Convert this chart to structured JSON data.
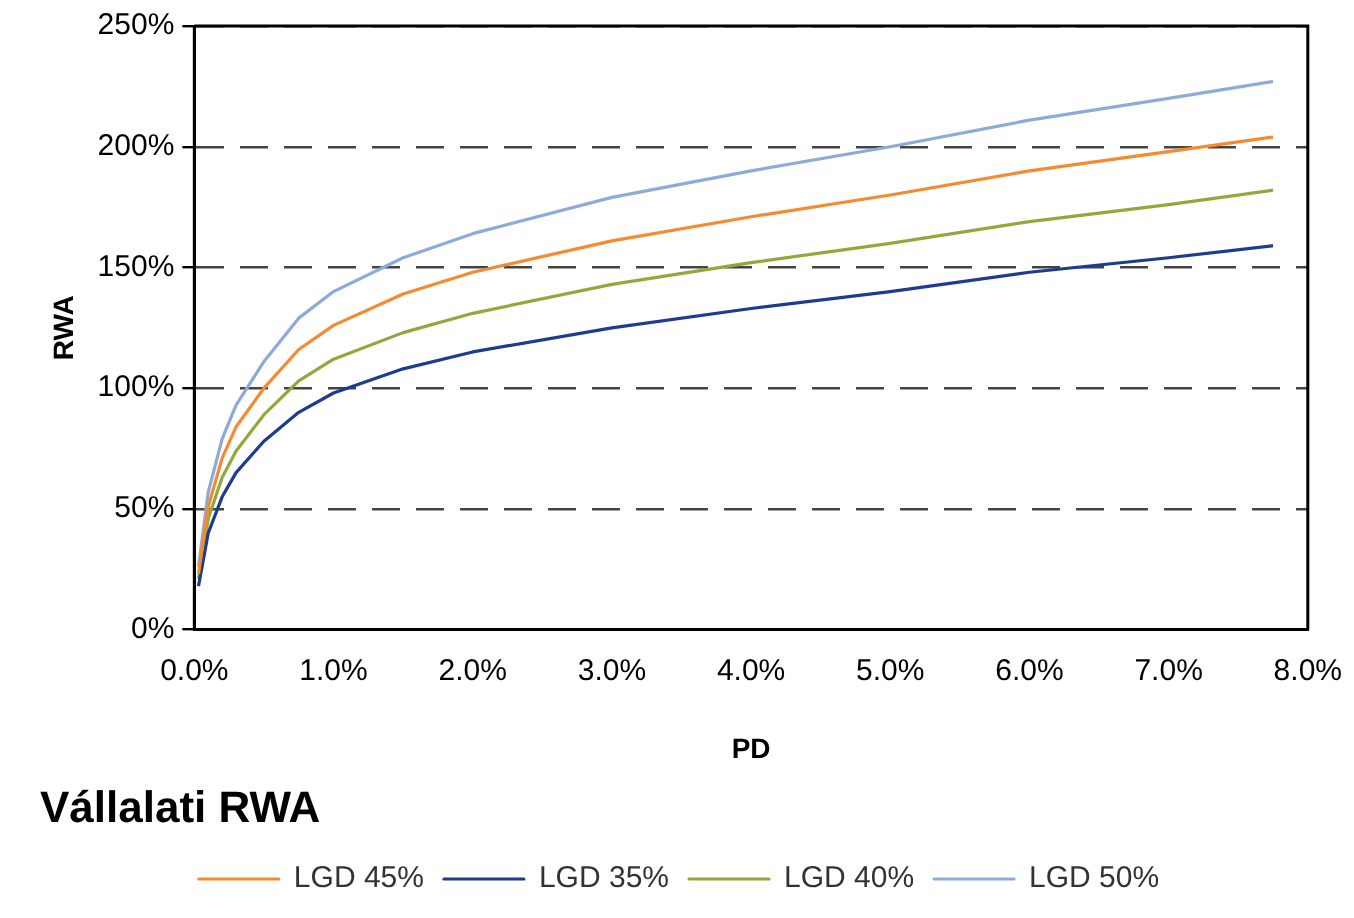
{
  "chart_data": {
    "type": "line",
    "title": "Vállalati RWA",
    "xlabel": "PD",
    "ylabel": "RWA",
    "x": [
      0.03,
      0.1,
      0.2,
      0.3,
      0.5,
      0.75,
      1,
      1.5,
      2,
      3,
      4,
      5,
      6,
      7,
      7.75
    ],
    "series": [
      {
        "name": "LGD 45%",
        "color": "#f58a2e",
        "values": [
          23,
          51,
          71,
          84,
          100,
          116,
          126,
          139,
          148,
          161,
          171,
          180,
          190,
          198,
          204
        ]
      },
      {
        "name": "LGD 35%",
        "color": "#1f3a8f",
        "values": [
          18,
          40,
          55,
          65,
          78,
          90,
          98,
          108,
          115,
          125,
          133,
          140,
          148,
          154,
          159
        ]
      },
      {
        "name": "LGD 40%",
        "color": "#8faa3c",
        "values": [
          21,
          46,
          63,
          74,
          89,
          103,
          112,
          123,
          131,
          143,
          152,
          160,
          169,
          176,
          182
        ]
      },
      {
        "name": "LGD 50%",
        "color": "#8eaadb",
        "values": [
          26,
          57,
          79,
          93,
          111,
          129,
          140,
          154,
          164,
          179,
          190,
          200,
          211,
          220,
          227
        ]
      }
    ],
    "xlim": [
      0,
      8
    ],
    "xticks": [
      {
        "value": 0,
        "label": "0.0%"
      },
      {
        "value": 1,
        "label": "1.0%"
      },
      {
        "value": 2,
        "label": "2.0%"
      },
      {
        "value": 3,
        "label": "3.0%"
      },
      {
        "value": 4,
        "label": "4.0%"
      },
      {
        "value": 5,
        "label": "5.0%"
      },
      {
        "value": 6,
        "label": "6.0%"
      },
      {
        "value": 7,
        "label": "7.0%"
      },
      {
        "value": 8,
        "label": "8.0%"
      }
    ],
    "ylim": [
      0,
      250
    ],
    "yticks": [
      {
        "value": 0,
        "label": "0%"
      },
      {
        "value": 50,
        "label": "50%"
      },
      {
        "value": 100,
        "label": "100%"
      },
      {
        "value": 150,
        "label": "150%"
      },
      {
        "value": 200,
        "label": "200%"
      },
      {
        "value": 250,
        "label": "250%"
      }
    ],
    "grid": "y",
    "legend": "bottom",
    "marker": "none",
    "line_style": "solid"
  }
}
